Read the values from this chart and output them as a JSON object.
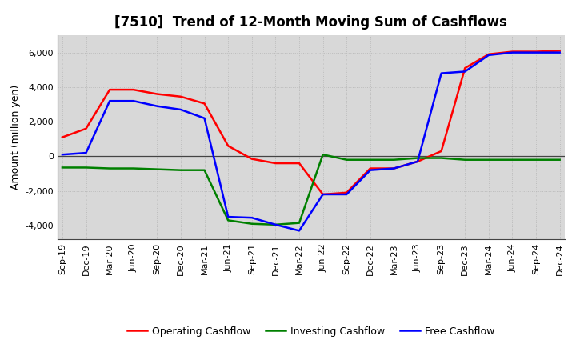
{
  "title": "[7510]  Trend of 12-Month Moving Sum of Cashflows",
  "ylabel": "Amount (million yen)",
  "xlabels": [
    "Sep-19",
    "Dec-19",
    "Mar-20",
    "Jun-20",
    "Sep-20",
    "Dec-20",
    "Mar-21",
    "Jun-21",
    "Sep-21",
    "Dec-21",
    "Mar-22",
    "Jun-22",
    "Sep-22",
    "Dec-22",
    "Mar-23",
    "Jun-23",
    "Sep-23",
    "Dec-23",
    "Mar-24",
    "Jun-24",
    "Sep-24",
    "Dec-24"
  ],
  "operating": [
    1100,
    1600,
    3850,
    3850,
    3600,
    3450,
    3050,
    600,
    -150,
    -400,
    -400,
    -2200,
    -2100,
    -700,
    -700,
    -300,
    300,
    5100,
    5900,
    6050,
    6050,
    6100
  ],
  "investing": [
    -650,
    -650,
    -700,
    -700,
    -750,
    -800,
    -800,
    -3700,
    -3900,
    -3950,
    -3850,
    100,
    -200,
    -200,
    -200,
    -100,
    -100,
    -200,
    -200,
    -200,
    -200,
    -200
  ],
  "free": [
    100,
    200,
    3200,
    3200,
    2900,
    2700,
    2200,
    -3500,
    -3550,
    -3950,
    -4300,
    -2200,
    -2200,
    -800,
    -700,
    -300,
    4800,
    4900,
    5850,
    6000,
    6000,
    6000
  ],
  "operating_color": "#FF0000",
  "investing_color": "#008000",
  "free_color": "#0000FF",
  "ylim": [
    -4800,
    7000
  ],
  "yticks": [
    -4000,
    -2000,
    0,
    2000,
    4000,
    6000
  ],
  "plot_bg_color": "#D8D8D8",
  "fig_bg_color": "#FFFFFF",
  "grid_color": "#BBBBBB",
  "line_width": 1.8,
  "title_fontsize": 12,
  "legend_fontsize": 9,
  "axis_tick_fontsize": 8,
  "ylabel_fontsize": 9
}
